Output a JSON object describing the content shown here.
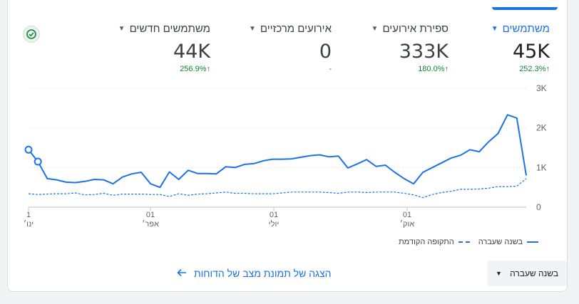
{
  "metrics": [
    {
      "name": "משתמשים",
      "value": "45K",
      "delta": "252.3%",
      "arrow": "↑",
      "active": true
    },
    {
      "name": "ספירת אירועים",
      "value": "333K",
      "delta": "180.0%",
      "arrow": "↑",
      "active": false
    },
    {
      "name": "אירועים מרכזיים",
      "value": "0",
      "delta": "-",
      "arrow": "",
      "active": false
    },
    {
      "name": "משתמשים חדשים",
      "value": "44K",
      "delta": "256.9%",
      "arrow": "↑",
      "active": false
    }
  ],
  "chart_data": {
    "type": "line",
    "y_ticks": [
      "3K",
      "2K",
      "1K",
      "0"
    ],
    "ylim": [
      0,
      3000
    ],
    "x_ticks": [
      {
        "day": "1",
        "month": "ינו׳"
      },
      {
        "day": "01",
        "month": "אפר׳"
      },
      {
        "day": "01",
        "month": "יולי"
      },
      {
        "day": "01",
        "month": "אוק׳"
      }
    ],
    "series": [
      {
        "name": "בשנה שעברה",
        "style": "solid",
        "color": "#1a73e8",
        "values": [
          1450,
          1150,
          720,
          690,
          630,
          620,
          650,
          700,
          690,
          590,
          760,
          840,
          880,
          590,
          500,
          890,
          700,
          930,
          850,
          850,
          840,
          1020,
          1000,
          1080,
          1100,
          1170,
          1210,
          1210,
          1220,
          1260,
          1300,
          1320,
          1270,
          1290,
          990,
          1090,
          1200,
          1030,
          1060,
          880,
          720,
          590,
          880,
          1000,
          1120,
          1240,
          1310,
          1450,
          1400,
          1650,
          1860,
          2330,
          2250,
          800
        ],
        "markers": [
          0,
          1
        ]
      },
      {
        "name": "התקופה הקודמת",
        "style": "dashed",
        "color": "#1a73e8",
        "values": [
          340,
          320,
          330,
          340,
          340,
          360,
          310,
          320,
          350,
          300,
          330,
          330,
          330,
          320,
          320,
          270,
          340,
          300,
          330,
          340,
          360,
          380,
          350,
          350,
          340,
          340,
          340,
          360,
          380,
          380,
          380,
          380,
          370,
          350,
          380,
          380,
          370,
          380,
          380,
          380,
          350,
          310,
          240,
          320,
          370,
          400,
          450,
          450,
          460,
          480,
          520,
          520,
          530,
          720
        ]
      }
    ]
  },
  "legend": {
    "current": "בשנה שעברה",
    "previous": "התקופה הקודמת"
  },
  "report_link": "הצגה של תמונת מצב של הדוחות",
  "period_select": {
    "value": "בשנה שעברה"
  },
  "colors": {
    "accent": "#1a73e8",
    "positive": "#188038"
  },
  "icons": {
    "status": "check-circle-icon",
    "link_arrow": "arrow-left-icon",
    "dropdown": "caret-down-icon"
  }
}
